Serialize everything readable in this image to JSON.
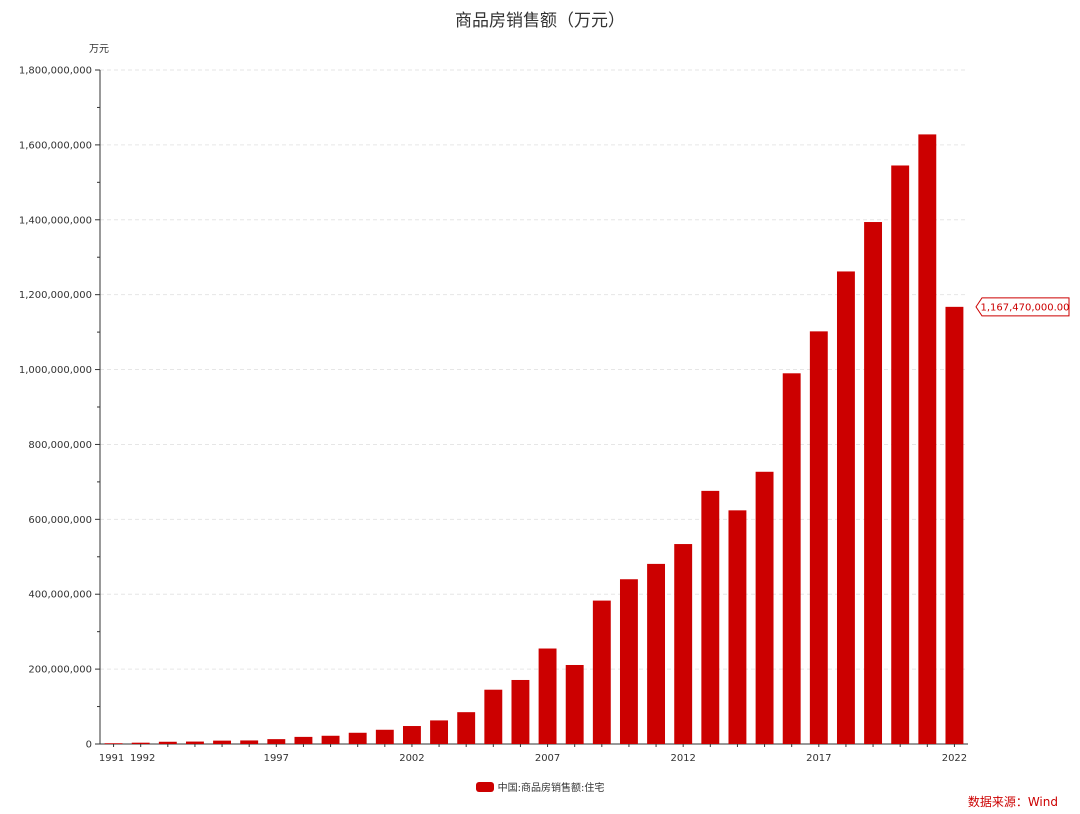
{
  "chart_data": {
    "type": "bar",
    "title": "商品房销售额（万元）",
    "ylabel": "万元",
    "ylim": [
      0,
      1800000000
    ],
    "yticks": [
      "0",
      "200,000,000",
      "400,000,000",
      "600,000,000",
      "800,000,000",
      "1,000,000,000",
      "1,200,000,000",
      "1,400,000,000",
      "1,600,000,000",
      "1,800,000,000"
    ],
    "xtick_labels": [
      "1991",
      "1992",
      "1997",
      "2002",
      "2007",
      "2012",
      "2017",
      "2022"
    ],
    "grid": true,
    "legend_position": "bottom",
    "categories": [
      "1991",
      "1992",
      "1993",
      "1994",
      "1995",
      "1996",
      "1997",
      "1998",
      "1999",
      "2000",
      "2001",
      "2002",
      "2003",
      "2004",
      "2005",
      "2006",
      "2007",
      "2008",
      "2009",
      "2010",
      "2011",
      "2012",
      "2013",
      "2014",
      "2015",
      "2016",
      "2017",
      "2018",
      "2019",
      "2020",
      "2021",
      "2022"
    ],
    "series": [
      {
        "name": "中国:商品房销售额:住宅",
        "color": "#cc0000",
        "values": [
          2000000,
          3500000,
          6000000,
          6500000,
          9000000,
          9500000,
          13000000,
          19000000,
          22000000,
          30000000,
          38000000,
          48000000,
          63000000,
          85000000,
          145000000,
          171000000,
          255000000,
          211000000,
          383000000,
          440000000,
          481000000,
          534000000,
          676000000,
          624000000,
          727000000,
          990000000,
          1102000000,
          1262000000,
          1394000000,
          1545000000,
          1628000000,
          1167470000
        ]
      }
    ],
    "annotation": {
      "label": "1,167,470,000.00",
      "category": "2022"
    }
  },
  "source_text": "数据来源：Wind"
}
